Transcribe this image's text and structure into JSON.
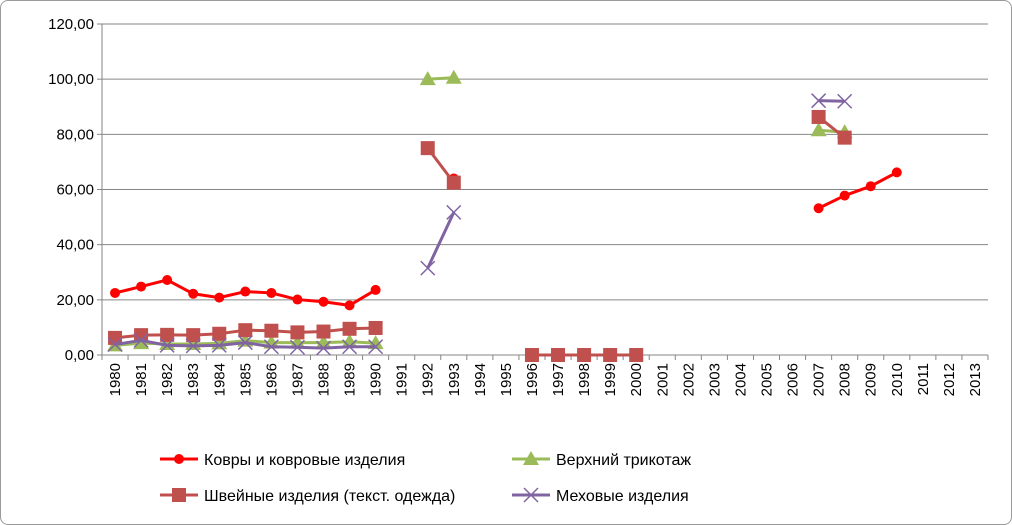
{
  "chart_data": {
    "type": "line",
    "title": "",
    "xlabel": "",
    "ylabel": "",
    "ylim": [
      0,
      120
    ],
    "y_ticks": [
      "0,00",
      "20,00",
      "40,00",
      "60,00",
      "80,00",
      "100,00",
      "120,00"
    ],
    "categories": [
      "1980",
      "1981",
      "1982",
      "1983",
      "1984",
      "1985",
      "1986",
      "1987",
      "1988",
      "1989",
      "1990",
      "1991",
      "1992",
      "1993",
      "1994",
      "1995",
      "1996",
      "1997",
      "1998",
      "1999",
      "2000",
      "2001",
      "2002",
      "2003",
      "2004",
      "2005",
      "2006",
      "2007",
      "2008",
      "2009",
      "2010",
      "2011",
      "2012",
      "2013"
    ],
    "grid": "horizontal",
    "legend_position": "bottom",
    "series": [
      {
        "name": "Ковры и ковровые изделия",
        "color": "#ff0000",
        "marker": "circle",
        "values": [
          22.5,
          24.8,
          27.2,
          22.2,
          20.8,
          23.0,
          22.5,
          20.1,
          19.3,
          18.0,
          23.6,
          null,
          null,
          64.0,
          null,
          null,
          null,
          null,
          null,
          null,
          null,
          null,
          null,
          null,
          null,
          null,
          null,
          53.2,
          57.8,
          61.2,
          66.2,
          null,
          null,
          null
        ]
      },
      {
        "name": "Верхний трикотаж",
        "color": "#9bbb59",
        "marker": "triangle",
        "values": [
          3.5,
          4.3,
          4.0,
          4.0,
          4.2,
          5.2,
          4.5,
          4.5,
          4.5,
          4.8,
          4.3,
          null,
          100.0,
          100.5,
          null,
          null,
          null,
          null,
          null,
          null,
          null,
          null,
          null,
          null,
          null,
          null,
          null,
          81.5,
          80.8,
          null,
          null,
          null,
          null,
          null
        ]
      },
      {
        "name": "Швейные изделия (текст. одежда)",
        "color": "#c0504d",
        "marker": "square",
        "values": [
          6.2,
          7.2,
          7.3,
          7.2,
          7.7,
          9.0,
          8.8,
          8.2,
          8.5,
          9.5,
          9.8,
          null,
          75.0,
          62.5,
          null,
          null,
          0.0,
          0.0,
          0.0,
          0.0,
          0.0,
          null,
          null,
          null,
          null,
          null,
          null,
          86.3,
          78.8,
          null,
          null,
          null,
          null,
          null
        ]
      },
      {
        "name": "Меховые изделия",
        "color": "#8064a2",
        "marker": "x",
        "values": [
          3.8,
          5.3,
          3.5,
          3.3,
          3.5,
          4.5,
          3.0,
          2.8,
          2.5,
          3.0,
          3.0,
          null,
          31.5,
          51.7,
          null,
          null,
          null,
          null,
          null,
          null,
          null,
          null,
          null,
          null,
          null,
          null,
          null,
          92.2,
          92.0,
          null,
          null,
          null,
          null,
          null
        ]
      }
    ]
  }
}
